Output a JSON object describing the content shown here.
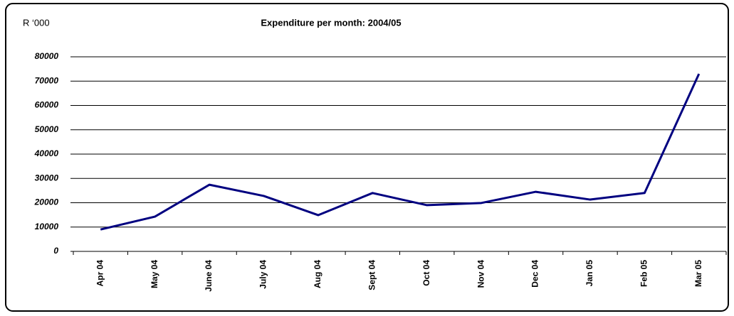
{
  "chart_data": {
    "type": "line",
    "title": "Expenditure per month: 2004/05",
    "y_label": "R ‘000",
    "categories": [
      "Apr 04",
      "May 04",
      "June 04",
      "July 04",
      "Aug 04",
      "Sept 04",
      "Oct 04",
      "Nov 04",
      "Dec 04",
      "Jan 05",
      "Feb 05",
      "Mar 05"
    ],
    "values": [
      9000,
      14300,
      27400,
      22800,
      14900,
      24000,
      19000,
      19900,
      24500,
      21300,
      24000,
      73000
    ],
    "color": "#000080",
    "ylim": [
      0,
      80000
    ],
    "yticks": [
      0,
      10000,
      20000,
      30000,
      40000,
      50000,
      60000,
      70000,
      80000
    ],
    "grid": true
  }
}
